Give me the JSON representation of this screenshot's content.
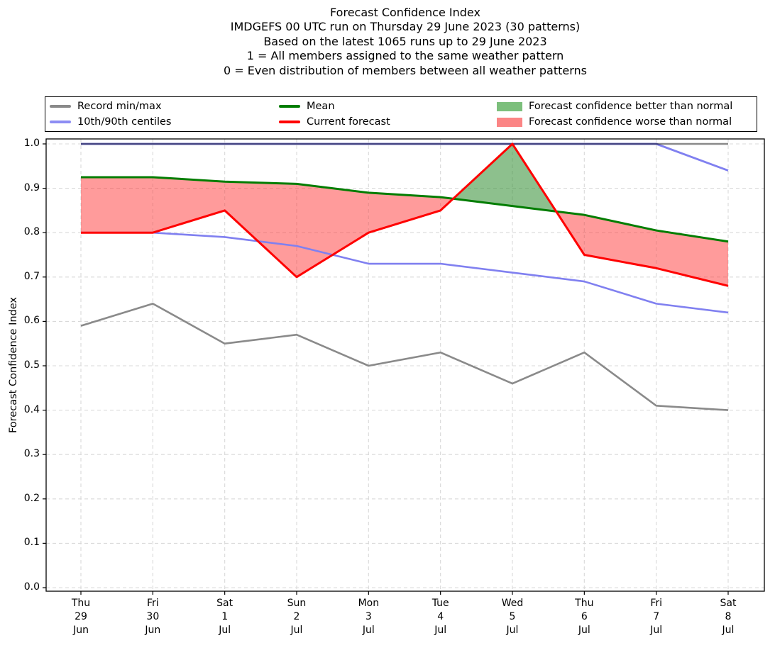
{
  "header": {
    "lines": [
      "Forecast Confidence Index",
      "IMDGEFS 00 UTC run on Thursday 29 June 2023 (30 patterns)",
      "Based on the latest 1065 runs up to 29 June 2023",
      "1 = All members assigned to the same weather pattern",
      "0 = Even distribution of members between all weather patterns"
    ]
  },
  "legend": {
    "items": [
      {
        "label": "Record min/max",
        "type": "line",
        "color": "#8a8a8a",
        "col": 0
      },
      {
        "label": "10th/90th centiles",
        "type": "line",
        "color": "#8d8df3",
        "col": 0
      },
      {
        "label": "Mean",
        "type": "line",
        "color": "#007d00",
        "col": 1
      },
      {
        "label": "Current forecast",
        "type": "line",
        "color": "#ff0000",
        "col": 1
      },
      {
        "label": "Forecast confidence better than normal",
        "type": "patch",
        "color": "#7cbf7c",
        "col": 2
      },
      {
        "label": "Forecast confidence worse than normal",
        "type": "patch",
        "color": "#fb8585",
        "col": 2
      }
    ]
  },
  "chart_data": {
    "type": "line",
    "title": "Forecast Confidence Index",
    "ylabel": "Forecast Confidence Index",
    "ylim": [
      0.0,
      1.0
    ],
    "grid": true,
    "legend_position": "top",
    "yticks": [
      {
        "v": 0.0,
        "label": "0.0"
      },
      {
        "v": 0.1,
        "label": "0.1"
      },
      {
        "v": 0.2,
        "label": "0.2"
      },
      {
        "v": 0.3,
        "label": "0.3"
      },
      {
        "v": 0.4,
        "label": "0.4"
      },
      {
        "v": 0.5,
        "label": "0.5"
      },
      {
        "v": 0.6,
        "label": "0.6"
      },
      {
        "v": 0.7,
        "label": "0.7"
      },
      {
        "v": 0.8,
        "label": "0.8"
      },
      {
        "v": 0.9,
        "label": "0.9"
      },
      {
        "v": 1.0,
        "label": "1.0"
      }
    ],
    "x_labels": [
      {
        "day": "Thu",
        "date": "29",
        "month": "Jun"
      },
      {
        "day": "Fri",
        "date": "30",
        "month": "Jun"
      },
      {
        "day": "Sat",
        "date": "1",
        "month": "Jul"
      },
      {
        "day": "Sun",
        "date": "2",
        "month": "Jul"
      },
      {
        "day": "Mon",
        "date": "3",
        "month": "Jul"
      },
      {
        "day": "Tue",
        "date": "4",
        "month": "Jul"
      },
      {
        "day": "Wed",
        "date": "5",
        "month": "Jul"
      },
      {
        "day": "Thu",
        "date": "6",
        "month": "Jul"
      },
      {
        "day": "Fri",
        "date": "7",
        "month": "Jul"
      },
      {
        "day": "Sat",
        "date": "8",
        "month": "Jul"
      }
    ],
    "series": [
      {
        "name": "Record max",
        "color": "#8a8a8a",
        "width": 2.4,
        "values": [
          1.0,
          1.0,
          1.0,
          1.0,
          1.0,
          1.0,
          1.0,
          1.0,
          1.0,
          1.0
        ]
      },
      {
        "name": "Record min",
        "color": "#8a8a8a",
        "width": 2.6,
        "values": [
          0.59,
          0.64,
          0.55,
          0.57,
          0.5,
          0.53,
          0.46,
          0.53,
          0.41,
          0.4
        ]
      },
      {
        "name": "90th centile",
        "color": "#8080f0",
        "width": 2.8,
        "blend": "multiply",
        "values": [
          1.0,
          1.0,
          1.0,
          1.0,
          1.0,
          1.0,
          1.0,
          1.0,
          1.0,
          0.94
        ]
      },
      {
        "name": "10th centile",
        "color": "#8080f0",
        "width": 2.6,
        "values": [
          0.8,
          0.8,
          0.79,
          0.77,
          0.73,
          0.73,
          0.71,
          0.69,
          0.64,
          0.62
        ]
      },
      {
        "name": "Mean",
        "color": "#007d00",
        "width": 3,
        "values": [
          0.925,
          0.925,
          0.915,
          0.91,
          0.89,
          0.88,
          0.86,
          0.84,
          0.805,
          0.78
        ]
      },
      {
        "name": "Current forecast",
        "color": "#ff0000",
        "width": 3,
        "values": [
          0.8,
          0.8,
          0.85,
          0.7,
          0.8,
          0.85,
          1.0,
          0.75,
          0.72,
          0.68
        ]
      }
    ],
    "bands": {
      "upper": "Current forecast",
      "baseline": "Mean",
      "better_label": "Forecast confidence better than normal",
      "worse_label": "Forecast confidence worse than normal",
      "better_color": "rgba(48,140,48,0.55)",
      "worse_color": "rgba(255,45,45,0.48)"
    }
  }
}
